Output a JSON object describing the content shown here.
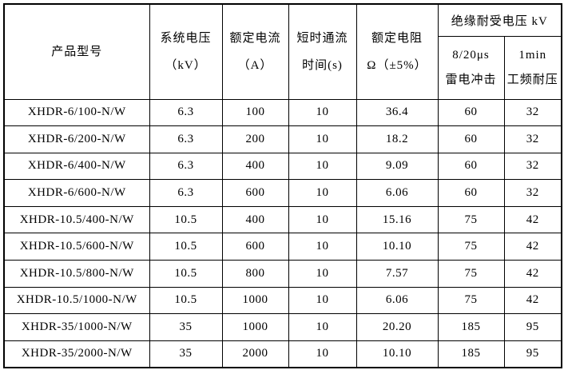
{
  "colors": {
    "border": "#000000",
    "text": "#000000",
    "background": "#ffffff"
  },
  "table": {
    "headers": {
      "product_model": "产品型号",
      "system_voltage_l1": "系统电压",
      "system_voltage_l2": "（kV）",
      "rated_current_l1": "额定电流",
      "rated_current_l2": "（A）",
      "short_time_l1": "短时通流",
      "short_time_l2": "时间(s)",
      "rated_resistance_l1": "额定电阻",
      "rated_resistance_l2": "Ω（±5%）",
      "insulation_group": "绝缘耐受电压 kV",
      "lightning_l1": "8/20μs",
      "lightning_l2": "雷电冲击",
      "power_freq_l1": "1min",
      "power_freq_l2": "工频耐压"
    },
    "column_names": [
      "product-model",
      "system-voltage",
      "rated-current",
      "short-time-duration",
      "rated-resistance",
      "lightning-impulse",
      "power-frequency-withstand"
    ],
    "rows": [
      [
        "XHDR-6/100-N/W",
        "6.3",
        "100",
        "10",
        "36.4",
        "60",
        "32"
      ],
      [
        "XHDR-6/200-N/W",
        "6.3",
        "200",
        "10",
        "18.2",
        "60",
        "32"
      ],
      [
        "XHDR-6/400-N/W",
        "6.3",
        "400",
        "10",
        "9.09",
        "60",
        "32"
      ],
      [
        "XHDR-6/600-N/W",
        "6.3",
        "600",
        "10",
        "6.06",
        "60",
        "32"
      ],
      [
        "XHDR-10.5/400-N/W",
        "10.5",
        "400",
        "10",
        "15.16",
        "75",
        "42"
      ],
      [
        "XHDR-10.5/600-N/W",
        "10.5",
        "600",
        "10",
        "10.10",
        "75",
        "42"
      ],
      [
        "XHDR-10.5/800-N/W",
        "10.5",
        "800",
        "10",
        "7.57",
        "75",
        "42"
      ],
      [
        "XHDR-10.5/1000-N/W",
        "10.5",
        "1000",
        "10",
        "6.06",
        "75",
        "42"
      ],
      [
        "XHDR-35/1000-N/W",
        "35",
        "1000",
        "10",
        "20.20",
        "185",
        "95"
      ],
      [
        "XHDR-35/2000-N/W",
        "35",
        "2000",
        "10",
        "10.10",
        "185",
        "95"
      ]
    ]
  }
}
